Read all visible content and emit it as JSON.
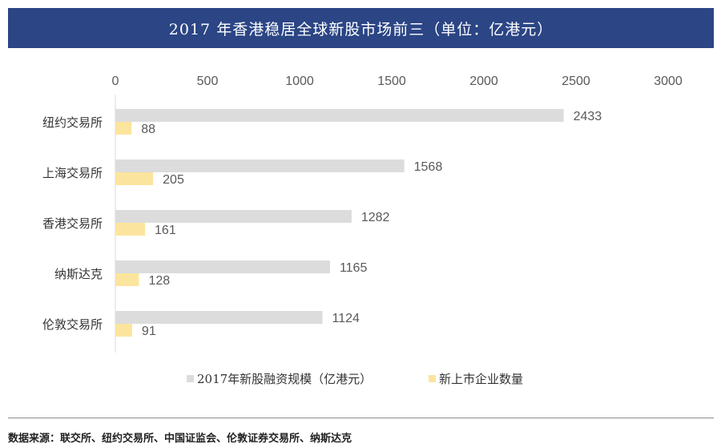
{
  "chart_data": {
    "type": "bar",
    "orientation": "horizontal",
    "title": "2017 年香港稳居全球新股市场前三（单位：亿港元）",
    "categories": [
      "纽约交易所",
      "上海交易所",
      "香港交易所",
      "纳斯达克",
      "伦敦交易所"
    ],
    "series": [
      {
        "name": "2017年新股融资规模（亿港元）",
        "values": [
          2433,
          1568,
          1282,
          1165,
          1124
        ],
        "color": "#dcdcdc"
      },
      {
        "name": "新上市企业数量",
        "values": [
          88,
          205,
          161,
          128,
          91
        ],
        "color": "#fbe59e"
      }
    ],
    "xlim": [
      0,
      3000
    ],
    "xticks": [
      "0",
      "500",
      "1000",
      "1500",
      "2000",
      "2500",
      "3000"
    ],
    "xaxis_position": "top",
    "grid": false,
    "legend_position": "bottom",
    "colors": {
      "label": "#595959",
      "title_bg": "#2b4585"
    }
  },
  "source": "数据来源：联交所、纽约交易所、中国证监会、伦敦证券交易所、纳斯达克"
}
